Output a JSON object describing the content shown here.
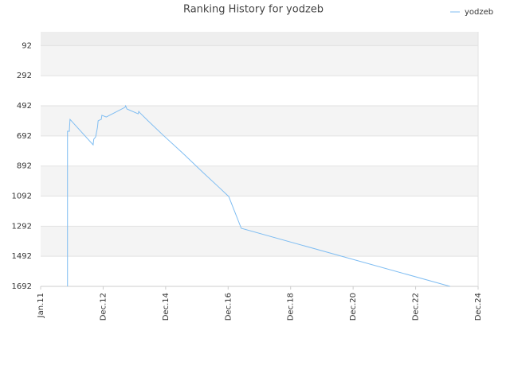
{
  "chart_data": {
    "type": "line",
    "title": "Ranking History for yodzeb",
    "x": [
      0.43,
      0.43,
      0.46,
      0.46,
      0.47,
      0.84,
      0.85,
      0.88,
      0.91,
      0.92,
      0.94,
      0.97,
      0.98,
      1.05,
      1.35,
      1.36,
      1.38,
      1.56,
      1.57,
      1.59,
      1.72,
      1.96,
      2.28,
      2.6,
      2.86,
      3.01,
      3.21,
      6.55
    ],
    "series": [
      {
        "name": "yodzeb",
        "color": "#7fbdf2",
        "values": [
          1692,
          661,
          661,
          650,
          582,
          751,
          714,
          698,
          634,
          592,
          587,
          582,
          555,
          566,
          502,
          492,
          513,
          545,
          529,
          539,
          592,
          687,
          809,
          936,
          1036,
          1095,
          1306,
          1692
        ]
      }
    ],
    "xlim": [
      0,
      7
    ],
    "xticks": [
      {
        "value": 0,
        "label": "Jan.11"
      },
      {
        "value": 1,
        "label": "Dec.12"
      },
      {
        "value": 2,
        "label": "Dec.14"
      },
      {
        "value": 3,
        "label": "Dec.16"
      },
      {
        "value": 4,
        "label": "Dec.18"
      },
      {
        "value": 5,
        "label": "Dec.20"
      },
      {
        "value": 6,
        "label": "Dec.22"
      },
      {
        "value": 7,
        "label": "Dec.24"
      }
    ],
    "ylim": [
      1692,
      0
    ],
    "yticks": [
      92,
      292,
      492,
      692,
      892,
      1092,
      1292,
      1492,
      1692
    ],
    "grid": true,
    "legend": "top-right"
  }
}
